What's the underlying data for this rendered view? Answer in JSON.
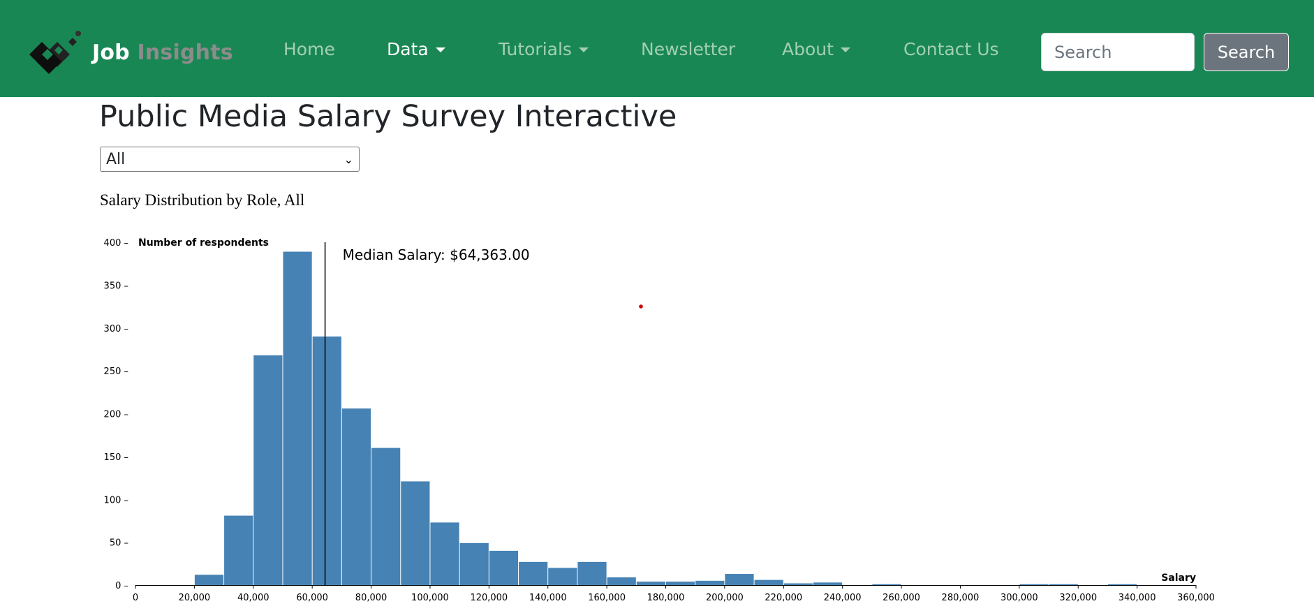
{
  "brand": {
    "name_part1": "Job",
    "name_part2": "Insights",
    "logo_icon": "cube-logo-icon"
  },
  "nav": {
    "items": [
      {
        "label": "Home",
        "dropdown": false,
        "active": false
      },
      {
        "label": "Data",
        "dropdown": true,
        "active": true
      },
      {
        "label": "Tutorials",
        "dropdown": true,
        "active": false
      },
      {
        "label": "Newsletter",
        "dropdown": false,
        "active": false
      },
      {
        "label": "About",
        "dropdown": true,
        "active": false
      },
      {
        "label": "Contact Us",
        "dropdown": false,
        "active": false
      }
    ],
    "search_placeholder": "Search",
    "search_button": "Search",
    "colors": {
      "navbar_bg": "#198754",
      "brand_accent": "#8c8c8c"
    }
  },
  "page": {
    "title": "Public Media Salary Survey Interactive",
    "role_select": {
      "selected": "All"
    },
    "chart_heading": "Salary Distribution by Role, All"
  },
  "chart_data": {
    "type": "bar",
    "subtype": "histogram",
    "xlabel": "Salary",
    "ylabel": "Number of respondents",
    "x_range": [
      0,
      360000
    ],
    "y_range": [
      0,
      400
    ],
    "bin_width": 10000,
    "x_ticks": [
      "0",
      "20,000",
      "40,000",
      "60,000",
      "80,000",
      "100,000",
      "120,000",
      "140,000",
      "160,000",
      "180,000",
      "200,000",
      "220,000",
      "240,000",
      "260,000",
      "280,000",
      "300,000",
      "320,000",
      "340,000",
      "360,000"
    ],
    "y_ticks": [
      "0",
      "50",
      "100",
      "150",
      "200",
      "250",
      "300",
      "350",
      "400"
    ],
    "bins": [
      {
        "x0": 20000,
        "value": 12
      },
      {
        "x0": 30000,
        "value": 81
      },
      {
        "x0": 40000,
        "value": 268
      },
      {
        "x0": 50000,
        "value": 389
      },
      {
        "x0": 60000,
        "value": 290
      },
      {
        "x0": 70000,
        "value": 206
      },
      {
        "x0": 80000,
        "value": 160
      },
      {
        "x0": 90000,
        "value": 121
      },
      {
        "x0": 100000,
        "value": 73
      },
      {
        "x0": 110000,
        "value": 49
      },
      {
        "x0": 120000,
        "value": 40
      },
      {
        "x0": 130000,
        "value": 27
      },
      {
        "x0": 140000,
        "value": 20
      },
      {
        "x0": 150000,
        "value": 27
      },
      {
        "x0": 160000,
        "value": 9
      },
      {
        "x0": 170000,
        "value": 4
      },
      {
        "x0": 180000,
        "value": 4
      },
      {
        "x0": 190000,
        "value": 5
      },
      {
        "x0": 200000,
        "value": 13
      },
      {
        "x0": 210000,
        "value": 6
      },
      {
        "x0": 220000,
        "value": 2
      },
      {
        "x0": 230000,
        "value": 3
      },
      {
        "x0": 250000,
        "value": 1
      },
      {
        "x0": 300000,
        "value": 1
      },
      {
        "x0": 310000,
        "value": 1
      },
      {
        "x0": 330000,
        "value": 1
      }
    ],
    "median": {
      "value": 64363,
      "label": "Median Salary: $64,363.00"
    },
    "bar_color": "#4682b4",
    "marker_color": "#cc0000"
  }
}
